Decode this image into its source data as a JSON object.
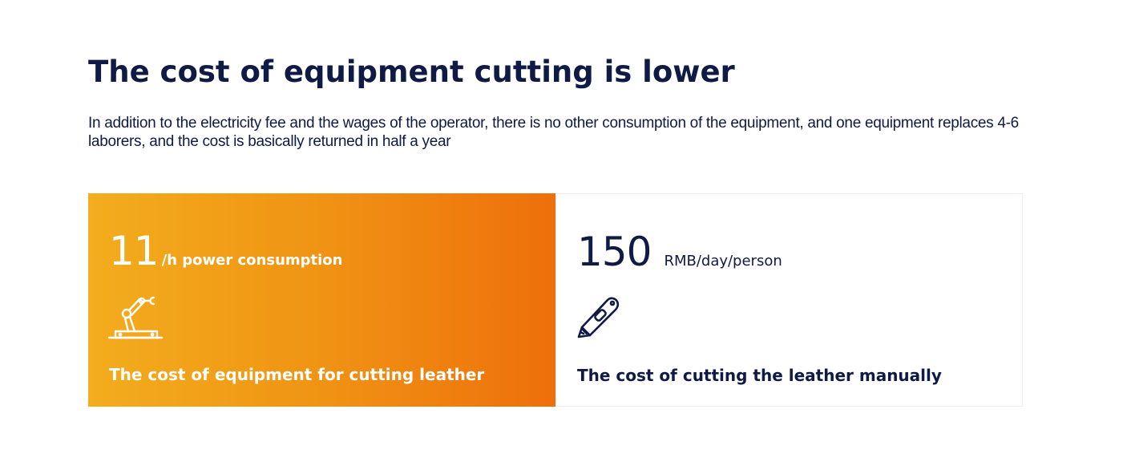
{
  "header": {
    "title": "The cost of equipment cutting is lower",
    "description": "In addition to the electricity fee and the wages of the operator, there is no other consumption of the equipment, and one equipment replaces 4-6 laborers, and the cost is basically returned in half a year"
  },
  "cards": [
    {
      "value": "11",
      "unit": "/h power consumption",
      "icon": "robot-arm-icon",
      "caption": "The cost of equipment for cutting leather",
      "gradient_start": "#f3ad1d",
      "gradient_end": "#ee6f0b",
      "text_color": "#ffffff"
    },
    {
      "value": "150",
      "unit": "RMB/day/person",
      "icon": "utility-knife-icon",
      "caption": "The cost of cutting the leather manually",
      "background": "#ffffff",
      "text_color": "#0f1a45"
    }
  ]
}
